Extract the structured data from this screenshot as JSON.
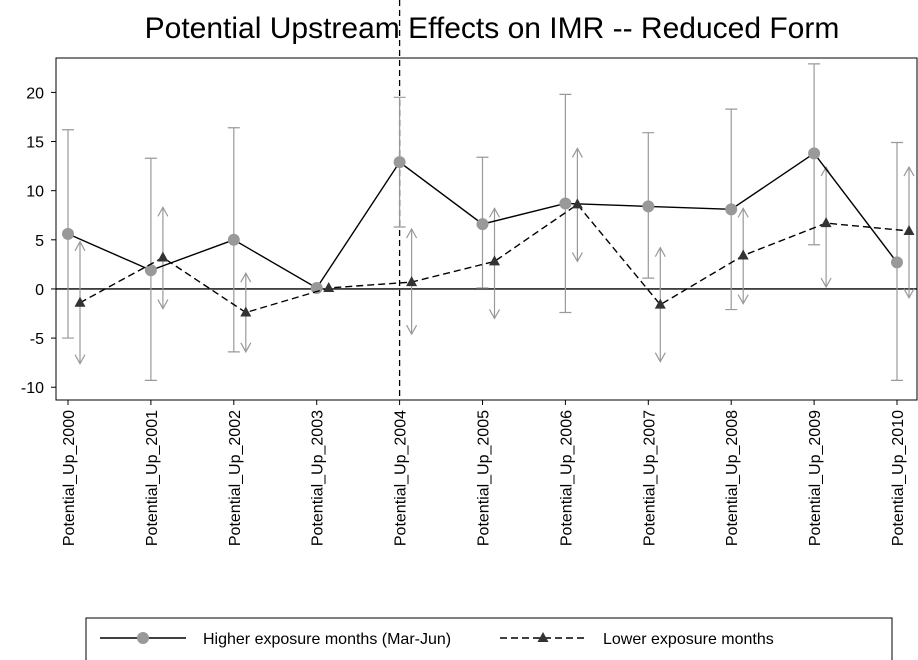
{
  "chart_data": {
    "type": "line",
    "title": "Potential Upstream Effects on IMR -- Reduced Form",
    "categories": [
      "Potential_Up_2000",
      "Potential_Up_2001",
      "Potential_Up_2002",
      "Potential_Up_2003",
      "Potential_Up_2004",
      "Potential_Up_2005",
      "Potential_Up_2006",
      "Potential_Up_2007",
      "Potential_Up_2008",
      "Potential_Up_2009",
      "Potential_Up_2010"
    ],
    "series": [
      {
        "name": "Higher exposure months (Mar-Jun)",
        "color": "#000000",
        "marker_color": "#999999",
        "marker": "circle",
        "dash": "solid",
        "cap": "flat",
        "values": [
          5.6,
          1.9,
          5.0,
          0.1,
          12.9,
          6.6,
          8.7,
          8.4,
          8.1,
          13.8,
          2.7
        ],
        "ci_low": [
          -5.0,
          -9.3,
          -6.4,
          null,
          6.3,
          0.1,
          -2.4,
          1.1,
          -2.1,
          4.5,
          -9.3
        ],
        "ci_high": [
          16.2,
          13.3,
          16.4,
          null,
          19.5,
          13.4,
          19.8,
          15.9,
          18.3,
          22.9,
          14.9
        ]
      },
      {
        "name": "Lower exposure months",
        "color": "#000000",
        "marker_color": "#333333",
        "marker": "triangle",
        "dash": "dashed",
        "cap": "arrow",
        "values": [
          -1.4,
          3.2,
          -2.4,
          0.1,
          0.7,
          2.8,
          8.6,
          -1.6,
          3.4,
          6.7,
          5.9
        ],
        "ci_low": [
          -7.6,
          -2.0,
          -6.4,
          null,
          -4.6,
          -3.0,
          2.8,
          -7.4,
          -1.5,
          0.2,
          -0.9
        ],
        "ci_high": [
          4.8,
          8.3,
          1.6,
          null,
          6.1,
          8.2,
          14.3,
          4.2,
          8.2,
          12.4,
          12.4
        ]
      }
    ],
    "ci_color": "#999999",
    "ylim": [
      -11.3,
      23.5
    ],
    "yticks": [
      -10,
      -5,
      0,
      5,
      10,
      15,
      20
    ],
    "hline": 0,
    "vline_category": "Potential_Up_2004"
  }
}
